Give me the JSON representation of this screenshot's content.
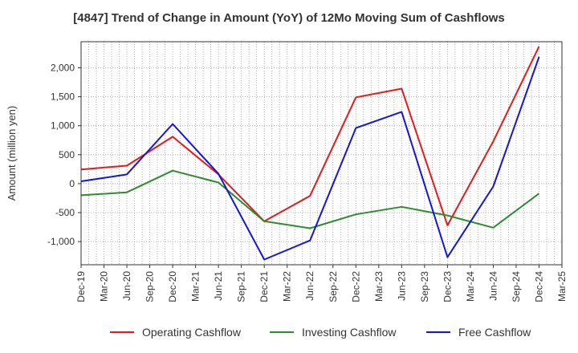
{
  "chart_data": {
    "type": "line",
    "title": "[4847]  Trend of Change in Amount (YoY) of 12Mo Moving Sum of Cashflows",
    "xlabel": "",
    "ylabel": "Amount (million yen)",
    "categories": [
      "Dec-19",
      "Mar-20",
      "Jun-20",
      "Sep-20",
      "Dec-20",
      "Mar-21",
      "Jun-21",
      "Sep-21",
      "Dec-21",
      "Mar-22",
      "Jun-22",
      "Sep-22",
      "Dec-22",
      "Mar-23",
      "Jun-23",
      "Sep-23",
      "Dec-23",
      "Mar-24",
      "Jun-24",
      "Sep-24",
      "Dec-24",
      "Mar-25"
    ],
    "y_ticks": [
      -1000,
      -500,
      0,
      500,
      1000,
      1500,
      2000
    ],
    "y_tick_labels": [
      "-1,000",
      "-500",
      "0",
      "500",
      "1,000",
      "1,500",
      "2,000"
    ],
    "ylim": [
      -1400,
      2450
    ],
    "grid": true,
    "legend_position": "bottom",
    "series": [
      {
        "name": "Operating Cashflow",
        "color": "#e41a1c",
        "values": [
          245,
          null,
          310,
          null,
          810,
          null,
          160,
          null,
          -650,
          null,
          -210,
          null,
          1490,
          null,
          1640,
          null,
          -720,
          null,
          730,
          null,
          2370,
          null
        ]
      },
      {
        "name": "Investing Cashflow",
        "color": "#2e8b2e",
        "values": [
          -200,
          null,
          -150,
          null,
          225,
          null,
          20,
          null,
          -650,
          null,
          -770,
          null,
          -530,
          null,
          -400,
          null,
          -550,
          null,
          -760,
          null,
          -170,
          null
        ]
      },
      {
        "name": "Free Cashflow",
        "color": "#1515d4",
        "values": [
          40,
          null,
          160,
          null,
          1030,
          null,
          170,
          null,
          -1310,
          null,
          -980,
          null,
          960,
          null,
          1240,
          null,
          -1270,
          null,
          -50,
          null,
          2190,
          null
        ]
      }
    ]
  }
}
